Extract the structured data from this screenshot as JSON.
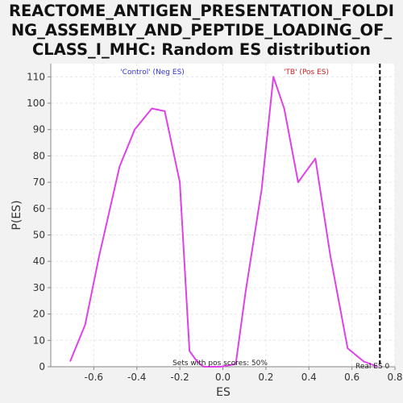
{
  "chart_data": {
    "type": "line",
    "title_lines": [
      "REACTOME_ANTIGEN_PRESENTATION_FOLDI",
      "NG_ASSEMBLY_AND_PEPTIDE_LOADING_OF_",
      "CLASS_I_MHC: Random ES distribution"
    ],
    "xlabel": "ES",
    "ylabel": "P(ES)",
    "xlim": [
      -0.8,
      0.8
    ],
    "ylim": [
      0,
      115
    ],
    "x_ticks": [
      -0.6,
      -0.4,
      -0.2,
      0.0,
      0.2,
      0.4,
      0.6,
      0.8
    ],
    "x_tick_labels": [
      "-0.6",
      "-0.4",
      "-0.2",
      "0.0",
      "0.2",
      "0.4",
      "0.6",
      "0.8"
    ],
    "y_ticks": [
      0,
      10,
      20,
      30,
      40,
      50,
      60,
      70,
      80,
      90,
      100,
      110
    ],
    "y_tick_labels": [
      "0",
      "10",
      "20",
      "30",
      "40",
      "50",
      "60",
      "70",
      "80",
      "90",
      "100",
      "110"
    ],
    "grid": true,
    "series": [
      {
        "color": "#e040e8",
        "x": [
          -0.71,
          -0.64,
          -0.575,
          -0.48,
          -0.41,
          -0.33,
          -0.27,
          -0.2,
          -0.155,
          -0.12,
          -0.09,
          -0.01,
          0.06,
          0.105,
          0.18,
          0.235,
          0.285,
          0.35,
          0.43,
          0.5,
          0.58,
          0.655,
          0.72
        ],
        "y": [
          2,
          16,
          42,
          76,
          90,
          98,
          97,
          70,
          6,
          2,
          0,
          0,
          1,
          28,
          67,
          110,
          98,
          70,
          79,
          42,
          7,
          2,
          0
        ]
      }
    ],
    "annotations": {
      "neg_label": "'Control' (Neg ES)",
      "neg_color": "#3333cc",
      "pos_label": "'TB' (Pos ES)",
      "pos_color": "#cc2222",
      "pos_scores": "Sets with pos scores: 50%",
      "real_es_label": "Real ES 0",
      "real_es_x": 0.73
    }
  }
}
